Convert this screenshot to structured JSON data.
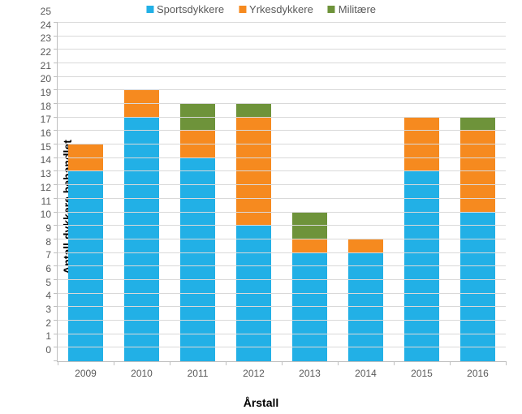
{
  "chart": {
    "type": "stacked-bar",
    "background_color": "#ffffff",
    "grid_color": "#d9d9d9",
    "axis_color": "#bfbfbf",
    "tick_label_color": "#595959",
    "yAxis": {
      "title": "Antall dykkere behandlet",
      "min": 0,
      "max": 25,
      "step": 1,
      "title_fontsize_pt": 14
    },
    "xAxis": {
      "title": "Årstall",
      "categories": [
        "2009",
        "2010",
        "2011",
        "2012",
        "2013",
        "2014",
        "2015",
        "2016"
      ],
      "title_fontsize_pt": 14
    },
    "legend": {
      "position": "top",
      "fontsize_pt": 13,
      "text_color": "#595959"
    },
    "series": [
      {
        "name": "Sportsdykkere",
        "color": "#22b0e6"
      },
      {
        "name": "Yrkesdykkere",
        "color": "#f68a1f"
      },
      {
        "name": "Militære",
        "color": "#6e933a"
      }
    ],
    "data": [
      {
        "sports": 14,
        "yrkes": 2,
        "milit": 0
      },
      {
        "sports": 18,
        "yrkes": 2,
        "milit": 0
      },
      {
        "sports": 15,
        "yrkes": 2,
        "milit": 2
      },
      {
        "sports": 10,
        "yrkes": 8,
        "milit": 1
      },
      {
        "sports": 8,
        "yrkes": 1,
        "milit": 2
      },
      {
        "sports": 8,
        "yrkes": 1,
        "milit": 0
      },
      {
        "sports": 14,
        "yrkes": 4,
        "milit": 0
      },
      {
        "sports": 11,
        "yrkes": 6,
        "milit": 1
      }
    ],
    "bar_width_ratio": 0.62,
    "tick_label_fontsize_pt": 12
  }
}
